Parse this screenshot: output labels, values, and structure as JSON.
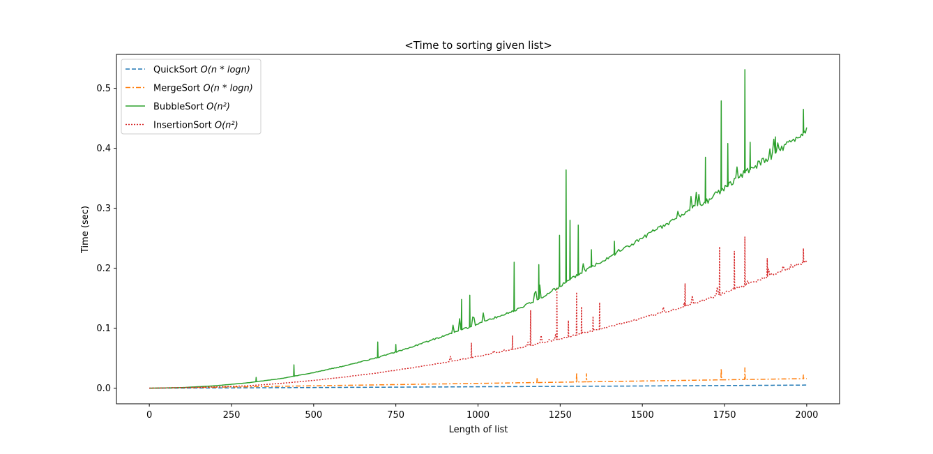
{
  "chart_data": {
    "type": "line",
    "title": "<Time to sorting given list>",
    "xlabel": "Length of list",
    "ylabel": "Time (sec)",
    "xlim": [
      -100,
      2100
    ],
    "ylim": [
      -0.026,
      0.5565
    ],
    "xticks": [
      0,
      250,
      500,
      750,
      1000,
      1250,
      1500,
      1750,
      2000
    ],
    "xtick_labels": [
      "0",
      "250",
      "500",
      "750",
      "1000",
      "1250",
      "1500",
      "1750",
      "2000"
    ],
    "yticks": [
      0.0,
      0.1,
      0.2,
      0.3,
      0.4,
      0.5
    ],
    "ytick_labels": [
      "0.0",
      "0.1",
      "0.2",
      "0.3",
      "0.4",
      "0.5"
    ],
    "grid": false,
    "legend_position": "upper-left",
    "x": [
      0,
      100,
      200,
      300,
      400,
      500,
      600,
      700,
      800,
      900,
      1000,
      1100,
      1200,
      1300,
      1400,
      1500,
      1600,
      1700,
      1800,
      1900,
      2000
    ],
    "series": [
      {
        "name": "QuickSort O(n*logn)",
        "legend_plain": "QuickSort ",
        "legend_math": "O(n * logn)",
        "color": "#1f77b4",
        "style": "dashed",
        "values": [
          0.0,
          0.0002,
          0.0004,
          0.0006,
          0.0009,
          0.0011,
          0.0014,
          0.0016,
          0.0019,
          0.0021,
          0.0024,
          0.0026,
          0.0029,
          0.0032,
          0.0034,
          0.0037,
          0.004,
          0.0043,
          0.0046,
          0.0049,
          0.0052
        ],
        "spikes": []
      },
      {
        "name": "MergeSort O(n*logn)",
        "legend_plain": "MergeSort ",
        "legend_math": "O(n * logn)",
        "color": "#ff7f0e",
        "style": "dashdot",
        "values": [
          0.0,
          0.0008,
          0.0016,
          0.0024,
          0.0032,
          0.004,
          0.0048,
          0.0056,
          0.0064,
          0.0072,
          0.008,
          0.0088,
          0.0096,
          0.0104,
          0.0112,
          0.012,
          0.0128,
          0.0136,
          0.0144,
          0.0152,
          0.016
        ],
        "spikes": [
          [
            1180,
            0.017
          ],
          [
            1300,
            0.026
          ],
          [
            1330,
            0.024
          ],
          [
            1740,
            0.033
          ],
          [
            1812,
            0.034
          ],
          [
            1990,
            0.022
          ]
        ]
      },
      {
        "name": "BubbleSort O(n^2)",
        "legend_plain": "BubbleSort ",
        "legend_math": "O(n²)",
        "color": "#2ca02c",
        "style": "solid",
        "values": [
          0.0,
          0.001,
          0.004,
          0.009,
          0.016,
          0.026,
          0.038,
          0.052,
          0.069,
          0.088,
          0.107,
          0.127,
          0.153,
          0.188,
          0.22,
          0.25,
          0.282,
          0.313,
          0.355,
          0.39,
          0.43
        ],
        "spikes": [
          [
            325,
            0.018
          ],
          [
            440,
            0.039
          ],
          [
            695,
            0.077
          ],
          [
            750,
            0.073
          ],
          [
            950,
            0.148
          ],
          [
            975,
            0.155
          ],
          [
            1110,
            0.21
          ],
          [
            1185,
            0.206
          ],
          [
            1248,
            0.255
          ],
          [
            1268,
            0.364
          ],
          [
            1280,
            0.28
          ],
          [
            1305,
            0.272
          ],
          [
            1345,
            0.231
          ],
          [
            1415,
            0.245
          ],
          [
            1692,
            0.385
          ],
          [
            1740,
            0.479
          ],
          [
            1760,
            0.408
          ],
          [
            1812,
            0.531
          ],
          [
            1828,
            0.41
          ],
          [
            1905,
            0.419
          ],
          [
            1990,
            0.465
          ]
        ]
      },
      {
        "name": "InsertionSort O(n^2)",
        "legend_plain": "InsertionSort ",
        "legend_math": "O(n²)",
        "color": "#d62728",
        "style": "dotted",
        "values": [
          0.0,
          0.001,
          0.002,
          0.004,
          0.008,
          0.013,
          0.019,
          0.026,
          0.034,
          0.043,
          0.053,
          0.064,
          0.076,
          0.089,
          0.103,
          0.117,
          0.132,
          0.149,
          0.169,
          0.19,
          0.212
        ],
        "spikes": [
          [
            980,
            0.075
          ],
          [
            1105,
            0.087
          ],
          [
            1160,
            0.13
          ],
          [
            1240,
            0.165
          ],
          [
            1275,
            0.113
          ],
          [
            1300,
            0.16
          ],
          [
            1315,
            0.136
          ],
          [
            1350,
            0.12
          ],
          [
            1370,
            0.143
          ],
          [
            1630,
            0.174
          ],
          [
            1735,
            0.236
          ],
          [
            1780,
            0.228
          ],
          [
            1812,
            0.252
          ],
          [
            1880,
            0.216
          ],
          [
            1990,
            0.233
          ]
        ]
      }
    ]
  }
}
